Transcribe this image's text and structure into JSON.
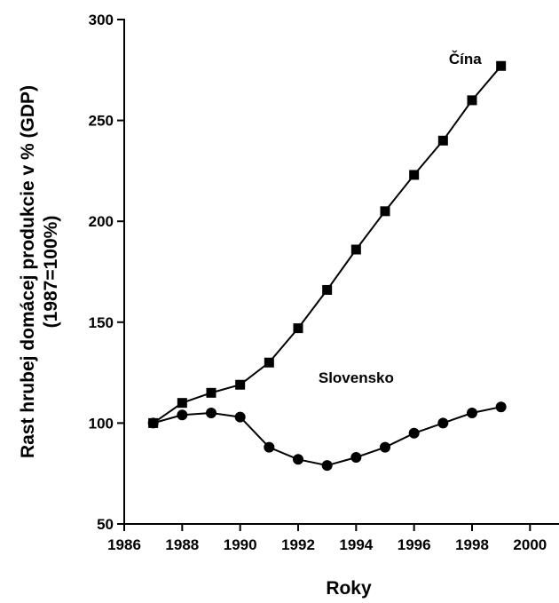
{
  "chart_data": {
    "type": "line",
    "title": "",
    "xlabel": "Roky",
    "ylabel_lines": [
      "Rast hrubej domácej produkcie v % (GDP)",
      "(1987=100%)"
    ],
    "xlim": [
      1986,
      2001
    ],
    "ylim": [
      50,
      300
    ],
    "x_ticks": [
      1986,
      1988,
      1990,
      1992,
      1994,
      1996,
      1998,
      2000
    ],
    "y_ticks": [
      50,
      100,
      150,
      200,
      250,
      300
    ],
    "grid": false,
    "legend": "none",
    "series": [
      {
        "name": "Čína",
        "marker": "square",
        "color": "#000000",
        "x": [
          1987,
          1988,
          1989,
          1990,
          1991,
          1992,
          1993,
          1994,
          1995,
          1996,
          1997,
          1998,
          1999
        ],
        "values": [
          100,
          110,
          115,
          119,
          130,
          147,
          166,
          186,
          205,
          223,
          240,
          260,
          277
        ]
      },
      {
        "name": "Slovensko",
        "marker": "circle",
        "color": "#000000",
        "x": [
          1987,
          1988,
          1989,
          1990,
          1991,
          1992,
          1993,
          1994,
          1995,
          1996,
          1997,
          1998,
          1999
        ],
        "values": [
          100,
          104,
          105,
          103,
          88,
          82,
          79,
          83,
          88,
          95,
          100,
          105,
          108
        ]
      }
    ]
  }
}
